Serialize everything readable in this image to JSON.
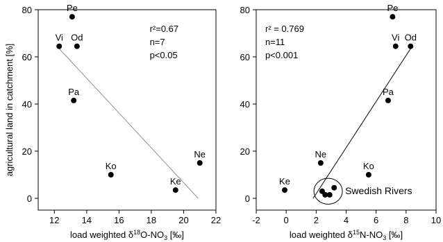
{
  "chart_data": [
    {
      "type": "scatter",
      "xlabel": "load weighted δ18O-NO3 [‰]",
      "xlabel_parts": [
        "load weighted δ",
        "18",
        "O-NO",
        "3",
        " [‰]"
      ],
      "ylabel": "agricultural land in catchment [%]",
      "xlim": [
        11,
        22
      ],
      "ylim": [
        -5,
        80
      ],
      "xticks": [
        12,
        14,
        16,
        18,
        20,
        22
      ],
      "yticks": [
        0,
        20,
        40,
        60,
        80
      ],
      "points": [
        {
          "label": "Pe",
          "x": 13.1,
          "y": 77
        },
        {
          "label": "Vi",
          "x": 12.3,
          "y": 64.5
        },
        {
          "label": "Od",
          "x": 13.4,
          "y": 64.5
        },
        {
          "label": "Pa",
          "x": 13.2,
          "y": 41.5
        },
        {
          "label": "Ko",
          "x": 15.5,
          "y": 10
        },
        {
          "label": "Ke",
          "x": 19.5,
          "y": 3.5
        },
        {
          "label": "Ne",
          "x": 21.0,
          "y": 15
        }
      ],
      "regression": {
        "x": [
          12.3,
          20.9
        ],
        "y": [
          63.5,
          0
        ]
      },
      "stats": [
        "r²=0.67",
        "n=7",
        "p<0.05"
      ]
    },
    {
      "type": "scatter",
      "xlabel": "load weighted δ15N-NO3 [‰]",
      "xlabel_parts": [
        "load weighted δ",
        "15",
        "N-NO",
        "3",
        " [‰]"
      ],
      "ylabel": "",
      "xlim": [
        -2,
        10
      ],
      "ylim": [
        -5,
        80
      ],
      "xticks": [
        -2,
        0,
        2,
        4,
        6,
        8,
        10
      ],
      "yticks": [
        0,
        20,
        40,
        60,
        80
      ],
      "points": [
        {
          "label": "Pe",
          "x": 7.1,
          "y": 77
        },
        {
          "label": "Vi",
          "x": 7.3,
          "y": 64.5
        },
        {
          "label": "Od",
          "x": 8.3,
          "y": 64.5
        },
        {
          "label": "Pa",
          "x": 6.8,
          "y": 41.5
        },
        {
          "label": "Ko",
          "x": 5.5,
          "y": 10
        },
        {
          "label": "Ne",
          "x": 2.3,
          "y": 15
        },
        {
          "label": "Ke",
          "x": -0.1,
          "y": 3.5
        },
        {
          "label": "",
          "x": 2.4,
          "y": 3
        },
        {
          "label": "",
          "x": 2.6,
          "y": 1.5
        },
        {
          "label": "",
          "x": 2.9,
          "y": 1.5
        },
        {
          "label": "",
          "x": 3.2,
          "y": 4.5
        }
      ],
      "regression": {
        "x": [
          1.8,
          8.3
        ],
        "y": [
          0,
          63.5
        ]
      },
      "stats": [
        "r² = 0.769",
        "n=11",
        "p<0.001"
      ],
      "annotation": {
        "text": "Swedish Rivers",
        "ellipse_center": [
          2.8,
          3
        ],
        "ellipse_radius": [
          0.95,
          5.5
        ]
      }
    }
  ],
  "colors": {
    "axis": "#000000",
    "points": "#000000",
    "regression_left": "#909090",
    "regression_right": "#000000"
  }
}
